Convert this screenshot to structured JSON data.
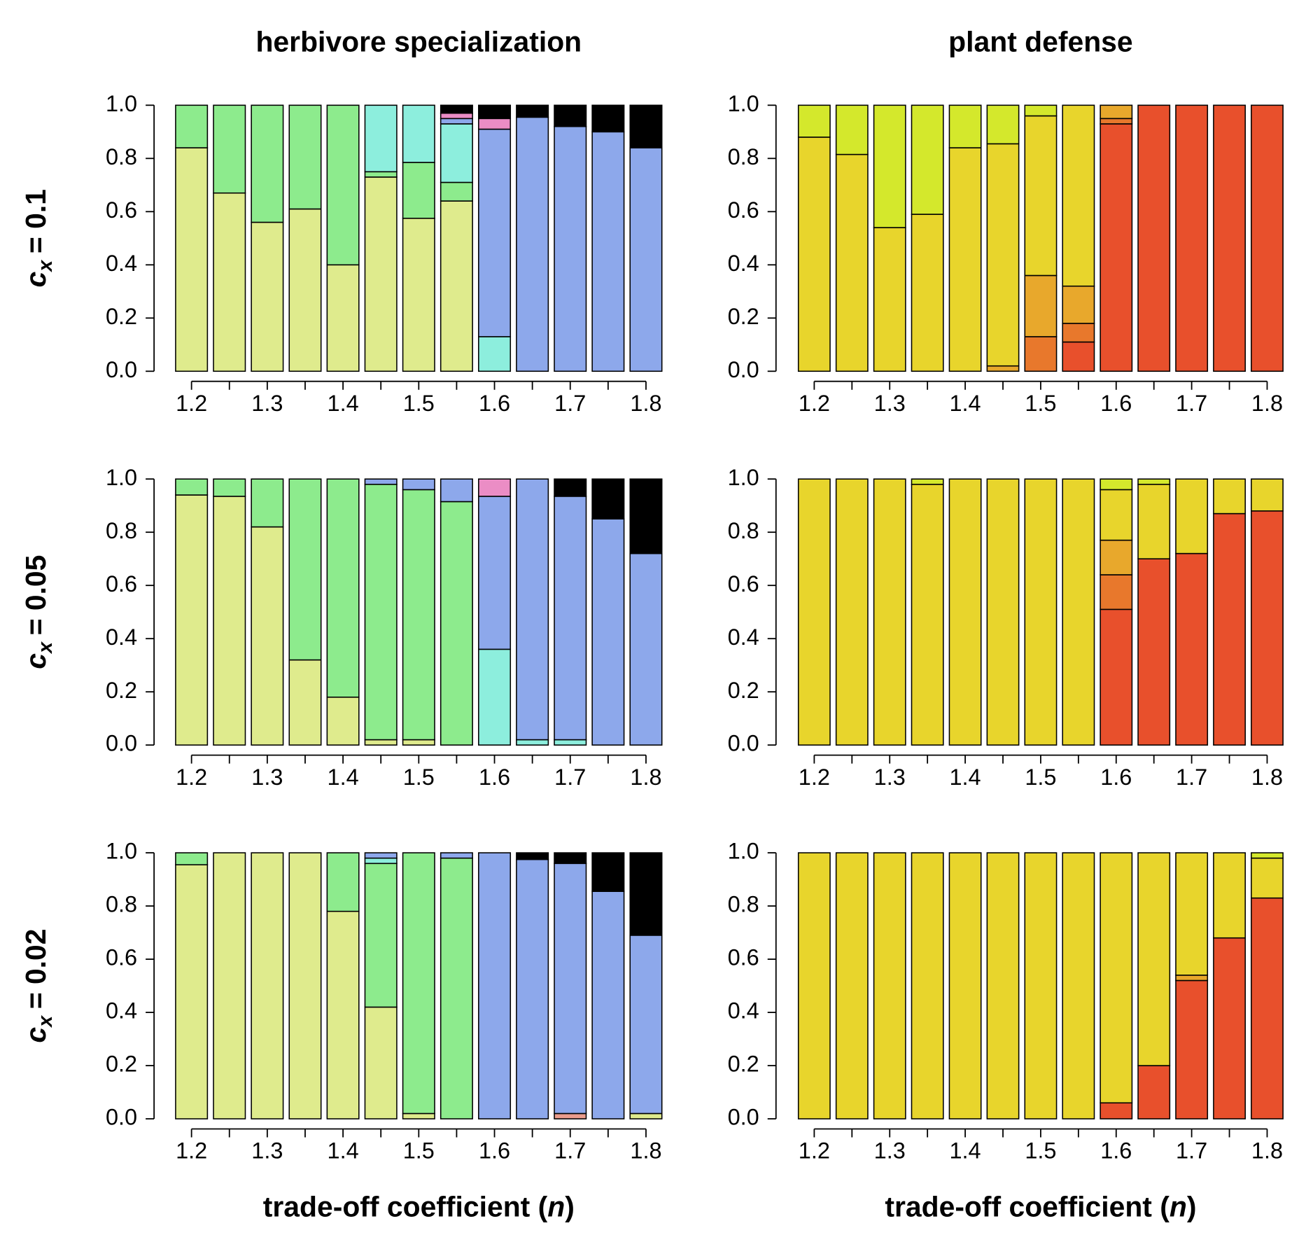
{
  "chart_data": [
    {
      "type": "bar",
      "stacked": true,
      "title": "herbivore specialization",
      "ylabel": {
        "symbol": "c",
        "subscript": "x",
        "text": "= 0.1"
      },
      "categories": [
        "1.2",
        null,
        "1.3",
        null,
        "1.4",
        null,
        "1.5",
        null,
        "1.6",
        null,
        "1.7",
        null,
        "1.8"
      ],
      "ylim": [
        0,
        1
      ],
      "yticks": [
        {
          "value": 0,
          "label": "0.0"
        },
        0.2,
        0.4,
        0.6,
        0.8,
        {
          "value": 1,
          "label": "1.0"
        }
      ],
      "series": [
        {
          "color": "#dfeb8d",
          "values": [
            0.84,
            0.67,
            0.56,
            0.61,
            0.4,
            0.73,
            0.575,
            0.64,
            null,
            null,
            null,
            null,
            null
          ]
        },
        {
          "color": "#8deb8d",
          "values": [
            0.16,
            0.33,
            0.44,
            0.39,
            0.6,
            0.02,
            0.21,
            0.07,
            null,
            null,
            null,
            null,
            null
          ]
        },
        {
          "color": "#8deedd",
          "values": [
            null,
            null,
            null,
            null,
            null,
            0.25,
            0.215,
            0.22,
            0.13,
            null,
            null,
            null,
            null
          ]
        },
        {
          "color": "#8da8eb",
          "values": [
            null,
            null,
            null,
            null,
            null,
            null,
            null,
            0.02,
            0.78,
            0.955,
            0.92,
            0.9,
            0.84
          ]
        },
        {
          "color": "#eb8dc5",
          "values": [
            null,
            null,
            null,
            null,
            null,
            null,
            null,
            0.02,
            0.04,
            null,
            null,
            null,
            null
          ]
        },
        {
          "color": "#000000",
          "values": [
            null,
            null,
            null,
            null,
            null,
            null,
            null,
            0.03,
            0.05,
            0.045,
            0.08,
            0.1,
            0.16
          ]
        }
      ]
    },
    {
      "type": "bar",
      "stacked": true,
      "title": "plant defense",
      "categories": [
        "1.2",
        null,
        "1.3",
        null,
        "1.4",
        null,
        "1.5",
        null,
        "1.6",
        null,
        "1.7",
        null,
        "1.8"
      ],
      "ylim": [
        0,
        1
      ],
      "yticks": [
        {
          "value": 0,
          "label": "0.0"
        },
        0.2,
        0.4,
        0.6,
        0.8,
        {
          "value": 1,
          "label": "1.0"
        }
      ],
      "series": [
        {
          "color": "#e8502c",
          "values": [
            null,
            null,
            null,
            null,
            null,
            null,
            null,
            0.11,
            0.93,
            1,
            1,
            1,
            1
          ]
        },
        {
          "color": "#e8782c",
          "values": [
            null,
            null,
            null,
            null,
            null,
            null,
            0.13,
            0.07,
            0.02,
            null,
            null,
            null,
            null
          ]
        },
        {
          "color": "#e8a82c",
          "values": [
            null,
            null,
            null,
            null,
            null,
            0.02,
            0.23,
            0.14,
            0.05,
            null,
            null,
            null,
            null
          ]
        },
        {
          "color": "#e8d52c",
          "values": [
            0.88,
            0.815,
            0.54,
            0.59,
            0.84,
            0.835,
            0.6,
            0.68,
            null,
            null,
            null,
            null,
            null
          ]
        },
        {
          "color": "#d4e82c",
          "values": [
            0.12,
            0.185,
            0.46,
            0.41,
            0.16,
            0.145,
            0.04,
            null,
            null,
            null,
            null,
            null,
            null
          ]
        }
      ]
    },
    {
      "type": "bar",
      "stacked": true,
      "ylabel": {
        "symbol": "c",
        "subscript": "x",
        "text": "= 0.05"
      },
      "categories": [
        "1.2",
        null,
        "1.3",
        null,
        "1.4",
        null,
        "1.5",
        null,
        "1.6",
        null,
        "1.7",
        null,
        "1.8"
      ],
      "ylim": [
        0,
        1
      ],
      "yticks": [
        {
          "value": 0,
          "label": "0.0"
        },
        0.2,
        0.4,
        0.6,
        0.8,
        {
          "value": 1,
          "label": "1.0"
        }
      ],
      "series": [
        {
          "color": "#dfeb8d",
          "values": [
            0.94,
            0.935,
            0.82,
            0.32,
            0.18,
            0.02,
            0.02,
            null,
            null,
            null,
            null,
            null,
            null
          ]
        },
        {
          "color": "#8deb8d",
          "values": [
            0.06,
            0.065,
            0.18,
            0.68,
            0.82,
            0.96,
            0.94,
            0.915,
            null,
            null,
            null,
            null,
            null
          ]
        },
        {
          "color": "#8deedd",
          "values": [
            null,
            null,
            null,
            null,
            null,
            null,
            null,
            null,
            0.36,
            0.02,
            0.02,
            null,
            null
          ]
        },
        {
          "color": "#8da8eb",
          "values": [
            null,
            null,
            null,
            null,
            null,
            0.02,
            0.04,
            0.085,
            0.575,
            0.98,
            0.915,
            0.85,
            0.72
          ]
        },
        {
          "color": "#eb8dc5",
          "values": [
            null,
            null,
            null,
            null,
            null,
            null,
            null,
            null,
            0.065,
            null,
            null,
            null,
            null
          ]
        },
        {
          "color": "#000000",
          "values": [
            null,
            null,
            null,
            null,
            null,
            null,
            null,
            null,
            null,
            null,
            0.065,
            0.15,
            0.28
          ]
        }
      ]
    },
    {
      "type": "bar",
      "stacked": true,
      "categories": [
        "1.2",
        null,
        "1.3",
        null,
        "1.4",
        null,
        "1.5",
        null,
        "1.6",
        null,
        "1.7",
        null,
        "1.8"
      ],
      "ylim": [
        0,
        1
      ],
      "yticks": [
        {
          "value": 0,
          "label": "0.0"
        },
        0.2,
        0.4,
        0.6,
        0.8,
        {
          "value": 1,
          "label": "1.0"
        }
      ],
      "series": [
        {
          "color": "#e8502c",
          "values": [
            null,
            null,
            null,
            null,
            null,
            null,
            null,
            null,
            0.51,
            0.7,
            0.72,
            0.87,
            0.88
          ]
        },
        {
          "color": "#e8782c",
          "values": [
            null,
            null,
            null,
            null,
            null,
            null,
            null,
            null,
            0.13,
            null,
            null,
            null,
            null
          ]
        },
        {
          "color": "#e8a82c",
          "values": [
            null,
            null,
            null,
            null,
            null,
            null,
            null,
            null,
            0.13,
            null,
            null,
            null,
            null
          ]
        },
        {
          "color": "#e8d52c",
          "values": [
            1,
            1,
            1,
            0.98,
            1,
            1,
            1,
            1,
            0.19,
            0.28,
            0.28,
            0.13,
            0.12
          ]
        },
        {
          "color": "#d4e82c",
          "values": [
            null,
            null,
            null,
            0.02,
            null,
            null,
            null,
            null,
            0.04,
            0.02,
            null,
            null,
            null
          ]
        }
      ]
    },
    {
      "type": "bar",
      "stacked": true,
      "ylabel": {
        "symbol": "c",
        "subscript": "x",
        "text": "= 0.02"
      },
      "xlabel": [
        "trade-off coefficient (",
        "n",
        ")"
      ],
      "categories": [
        "1.2",
        null,
        "1.3",
        null,
        "1.4",
        null,
        "1.5",
        null,
        "1.6",
        null,
        "1.7",
        null,
        "1.8"
      ],
      "ylim": [
        0,
        1
      ],
      "yticks": [
        {
          "value": 0,
          "label": "0.0"
        },
        0.2,
        0.4,
        0.6,
        0.8,
        {
          "value": 1,
          "label": "1.0"
        }
      ],
      "series": [
        {
          "color": "#eb9d8d",
          "values": [
            null,
            null,
            null,
            null,
            null,
            null,
            null,
            null,
            null,
            null,
            0.02,
            null,
            null
          ]
        },
        {
          "color": "#dfeb8d",
          "values": [
            0.955,
            1,
            1,
            1,
            0.78,
            0.42,
            0.02,
            null,
            null,
            null,
            null,
            null,
            0.02
          ]
        },
        {
          "color": "#8deb8d",
          "values": [
            0.045,
            null,
            null,
            null,
            0.22,
            0.54,
            0.98,
            0.98,
            null,
            null,
            null,
            null,
            null
          ]
        },
        {
          "color": "#8deedd",
          "values": [
            null,
            null,
            null,
            null,
            null,
            0.02,
            null,
            null,
            null,
            null,
            null,
            null,
            null
          ]
        },
        {
          "color": "#8da8eb",
          "values": [
            null,
            null,
            null,
            null,
            null,
            0.02,
            null,
            0.02,
            1,
            0.975,
            0.94,
            0.855,
            0.67
          ]
        },
        {
          "color": "#000000",
          "values": [
            null,
            null,
            null,
            null,
            null,
            null,
            null,
            null,
            null,
            0.025,
            0.04,
            0.145,
            0.31
          ]
        }
      ]
    },
    {
      "type": "bar",
      "stacked": true,
      "xlabel": [
        "trade-off coefficient (",
        "n",
        ")"
      ],
      "categories": [
        "1.2",
        null,
        "1.3",
        null,
        "1.4",
        null,
        "1.5",
        null,
        "1.6",
        null,
        "1.7",
        null,
        "1.8"
      ],
      "ylim": [
        0,
        1
      ],
      "yticks": [
        {
          "value": 0,
          "label": "0.0"
        },
        0.2,
        0.4,
        0.6,
        0.8,
        {
          "value": 1,
          "label": "1.0"
        }
      ],
      "series": [
        {
          "color": "#e8502c",
          "values": [
            null,
            null,
            null,
            null,
            null,
            null,
            null,
            null,
            0.06,
            0.2,
            0.52,
            0.68,
            0.83
          ]
        },
        {
          "color": "#e8a82c",
          "values": [
            null,
            null,
            null,
            null,
            null,
            null,
            null,
            null,
            null,
            null,
            0.02,
            null,
            null
          ]
        },
        {
          "color": "#e8d52c",
          "values": [
            1,
            1,
            1,
            1,
            1,
            1,
            1,
            1,
            0.94,
            0.8,
            0.46,
            0.32,
            0.15
          ]
        },
        {
          "color": "#d4e82c",
          "values": [
            null,
            null,
            null,
            null,
            null,
            null,
            null,
            null,
            null,
            null,
            null,
            null,
            0.02
          ]
        }
      ]
    }
  ]
}
